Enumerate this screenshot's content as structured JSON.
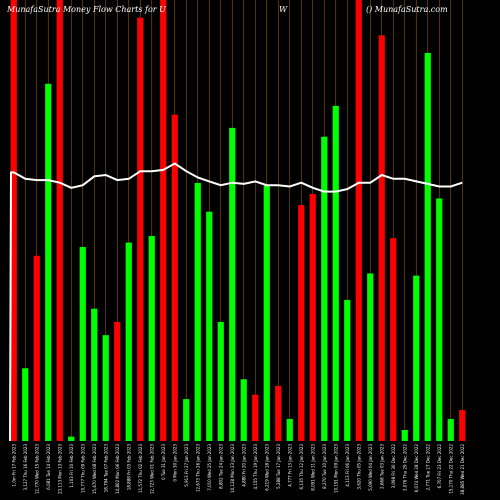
{
  "header": {
    "left_title": "MunafaSutra  Money Flow  Charts for U",
    "mid_title": "W",
    "right_title": "() MunafaSutra.com"
  },
  "colors": {
    "background": "#000000",
    "up": "#00ff00",
    "down": "#ff0000",
    "line": "#ffffff",
    "gridline": "#8b5a1a"
  },
  "chart_data": {
    "type": "bar",
    "title": "MunafaSutra  Money Flow  Charts for U",
    "ylim": [
      0,
      100
    ],
    "grid": "vertical",
    "bars": [
      {
        "label": "1.0m Fri 17 Feb 2023",
        "value": 100,
        "color": "red"
      },
      {
        "label": "3,127 Thu 16 Feb 2023",
        "value": 16.5,
        "color": "green"
      },
      {
        "label": "12,770 Wed 15 Feb 2023",
        "value": 42,
        "color": "red"
      },
      {
        "label": "6,081 Tue 14 Feb 2023",
        "value": 81,
        "color": "green"
      },
      {
        "label": "23,113 Mon 13 Feb 2023",
        "value": 100,
        "color": "red"
      },
      {
        "label": "1,103 Fri 10 Feb 2023",
        "value": 1,
        "color": "green"
      },
      {
        "label": "10,777 Thu 09 Feb 2023",
        "value": 44,
        "color": "green"
      },
      {
        "label": "15,470 Wed 08 Feb 2023",
        "value": 30,
        "color": "green"
      },
      {
        "label": "18,794 Tue 07 Feb 2023",
        "value": 24,
        "color": "green"
      },
      {
        "label": "14,802 Mon 06 Feb 2023",
        "value": 27,
        "color": "red"
      },
      {
        "label": "18,888 Fri 03 Feb 2023",
        "value": 45,
        "color": "green"
      },
      {
        "label": "11,572 Thu 02 Feb 2023",
        "value": 96,
        "color": "red"
      },
      {
        "label": "12,723 Wed 01 Feb 2023",
        "value": 46.5,
        "color": "green"
      },
      {
        "label": "0 Tue 31 Jan 2023",
        "value": 100,
        "color": "red"
      },
      {
        "label": "0 Mon 30 Jan 2023",
        "value": 74,
        "color": "red"
      },
      {
        "label": "5,913 Fri 27 Jan 2023",
        "value": 9.5,
        "color": "green"
      },
      {
        "label": "12,673 Thu 26 Jan 2023",
        "value": 58.5,
        "color": "green"
      },
      {
        "label": "7,010 Wed 25 Jan 2023",
        "value": 52,
        "color": "green"
      },
      {
        "label": "8,802 Tue 24 Jan 2023",
        "value": 27,
        "color": "green"
      },
      {
        "label": "10,128 Mon 23 Jan 2023",
        "value": 71,
        "color": "green"
      },
      {
        "label": "4,880 Fri 20 Jan 2023",
        "value": 14,
        "color": "green"
      },
      {
        "label": "4,155 Thu 19 Jan 2023",
        "value": 10.5,
        "color": "red"
      },
      {
        "label": "6,219 Wed 18 Jan 2023",
        "value": 58,
        "color": "green"
      },
      {
        "label": "5,288 Tue 17 Jan 2023",
        "value": 12.5,
        "color": "red"
      },
      {
        "label": "4,777 Fri 13 Jan 2023",
        "value": 5,
        "color": "green"
      },
      {
        "label": "6,135 Thu 12 Jan 2023",
        "value": 53.5,
        "color": "red"
      },
      {
        "label": "8,091 Wed 11 Jan 2023",
        "value": 56,
        "color": "red"
      },
      {
        "label": "8,270 Tue 10 Jan 2023",
        "value": 69,
        "color": "green"
      },
      {
        "label": "10,191 Mon 09 Jan 2023",
        "value": 76,
        "color": "green"
      },
      {
        "label": "4,113 Fri 06 Jan 2023",
        "value": 32,
        "color": "green"
      },
      {
        "label": "3,620 Thu 05 Jan 2023",
        "value": 100,
        "color": "red"
      },
      {
        "label": "5,090 Wed 04 Jan 2023",
        "value": 38,
        "color": "green"
      },
      {
        "label": "2,668 Tue 03 Jan 2023",
        "value": 92,
        "color": "red"
      },
      {
        "label": "3,098 Fri 30 Dec 2022",
        "value": 46,
        "color": "red"
      },
      {
        "label": "3,076 Thu 29 Dec 2022",
        "value": 2.5,
        "color": "green"
      },
      {
        "label": "6,074 Wed 28 Dec 2022",
        "value": 37.5,
        "color": "green"
      },
      {
        "label": "2,771 Tue 27 Dec 2022",
        "value": 88,
        "color": "green"
      },
      {
        "label": "6,707 Fri 23 Dec 2022",
        "value": 55,
        "color": "green"
      },
      {
        "label": "15,170 Thu 22 Dec 2022",
        "value": 5,
        "color": "green"
      },
      {
        "label": "38,885 Wed 21 Dec 2022",
        "value": 7,
        "color": "red"
      }
    ],
    "line": [
      21,
      20.5,
      20.4,
      20.4,
      20.2,
      19.8,
      20.0,
      20.7,
      20.8,
      20.4,
      20.5,
      21.1,
      21.1,
      21.2,
      21.7,
      21.1,
      20.6,
      20.3,
      20.0,
      20.2,
      20.1,
      20.3,
      20.0,
      20.0,
      19.9,
      20.2,
      19.8,
      19.5,
      19.5,
      19.7,
      20.2,
      20.2,
      20.8,
      20.5,
      20.5,
      20.3,
      20.1,
      19.9,
      19.9,
      20.2
    ]
  }
}
